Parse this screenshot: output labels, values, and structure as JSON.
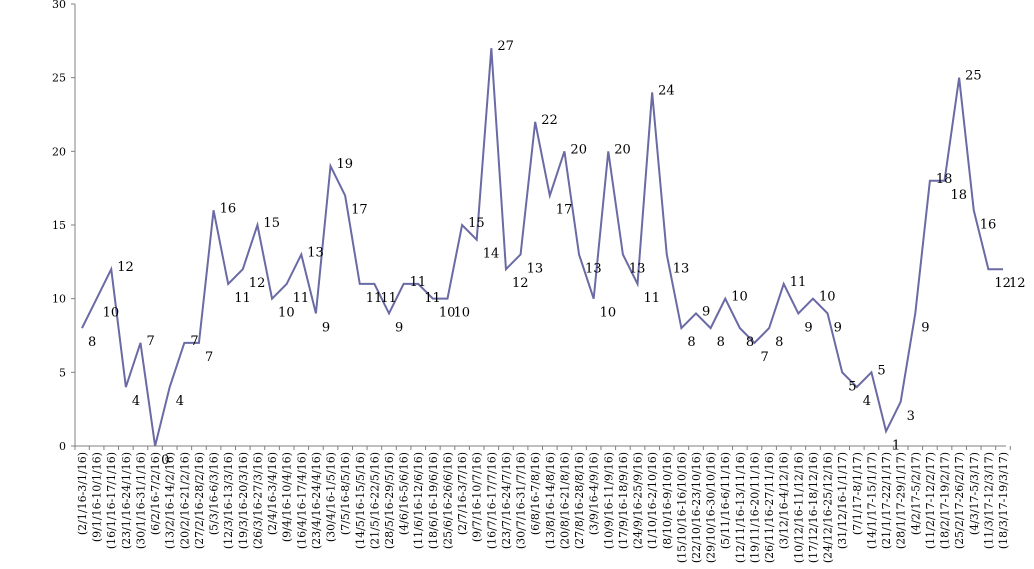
{
  "chart_data": {
    "type": "line",
    "title": "",
    "xlabel": "",
    "ylabel": "",
    "ylim": [
      0,
      30
    ],
    "yticks": [
      0,
      5,
      10,
      15,
      20,
      25,
      30
    ],
    "grid": false,
    "legend": "none",
    "colors": {
      "line": "#6a6aa4",
      "axis": "#808080"
    },
    "categories": [
      "(2/1/16-3/1/16)",
      "(9/1/16-10/1/16)",
      "(16/1/16-17/1/16)",
      "(23/1/16-24/1/16)",
      "(30/1/16-31/1/16)",
      "(6/2/16-7/2/16)",
      "(13/2/16-14/2/16)",
      "(20/2/16-21/2/16)",
      "(27/2/16-28/2/16)",
      "(5/3/16-6/3/16)",
      "(12/3/16-13/3/16)",
      "(19/3/16-20/3/16)",
      "(26/3/16-27/3/16)",
      "(2/4/16-3/4/16)",
      "(9/4/16-10/4/16)",
      "(16/4/16-17/4/16)",
      "(23/4/16-24/4/16)",
      "(30/4/16-1/5/16)",
      "(7/5/16-8/5/16)",
      "(14/5/16-15/5/16)",
      "(21/5/16-22/5/16)",
      "(28/5/16-29/5/16)",
      "(4/6/16-5/6/16)",
      "(11/6/16-12/6/16)",
      "(18/6/16-19/6/16)",
      "(25/6/16-26/6/16)",
      "(2/7/16-3/7/16)",
      "(9/7/16-10/7/16)",
      "(16/7/16-17/7/16)",
      "(23/7/16-24/7/16)",
      "(30/7/16-31/7/16)",
      "(6/8/16-7/8/16)",
      "(13/8/16-14/8/16)",
      "(20/8/16-21/8/16)",
      "(27/8/16-28/8/16)",
      "(3/9/16-4/9/16)",
      "(10/9/16-11/9/16)",
      "(17/9/16-18/9/16)",
      "(24/9/16-25/9/16)",
      "(1/10/16-2/10/16)",
      "(8/10/16-9/10/16)",
      "(15/10/16-16/10/16)",
      "(22/10/16-23/10/16)",
      "(29/10/16-30/10/16)",
      "(5/11/16-6/11/16)",
      "(12/11/16-13/11/16)",
      "(19/11/16-20/11/16)",
      "(26/11/16-27/11/16)",
      "(3/12/16-4/12/16)",
      "(10/12/16-11/12/16)",
      "(17/12/16-18/12/16)",
      "(24/12/16-25/12/16)",
      "(31/12/16-1/1/17)",
      "(7/1/17-8/1/17)",
      "(14/1/17-15/1/17)",
      "(21/1/17-22/1/17)",
      "(28/1/17-29/1/17)",
      "(4/2/17-5/2/17)",
      "(11/2/17-12/2/17)",
      "(18/2/17-19/2/17)",
      "(25/2/17-26/2/17)",
      "(4/3/17-5/3/17)",
      "(11/3/17-12/3/17)",
      "(18/3/17-19/3/17)"
    ],
    "series": [
      {
        "name": "",
        "values": [
          8,
          10,
          12,
          4,
          7,
          0,
          4,
          7,
          7,
          16,
          11,
          12,
          15,
          10,
          11,
          13,
          9,
          19,
          17,
          11,
          11,
          9,
          11,
          11,
          10,
          10,
          15,
          14,
          27,
          12,
          13,
          22,
          17,
          20,
          13,
          10,
          20,
          13,
          11,
          24,
          13,
          8,
          9,
          8,
          10,
          8,
          7,
          8,
          11,
          9,
          10,
          9,
          5,
          4,
          5,
          1,
          3,
          9,
          18,
          18,
          25,
          16,
          12,
          12
        ]
      }
    ]
  }
}
